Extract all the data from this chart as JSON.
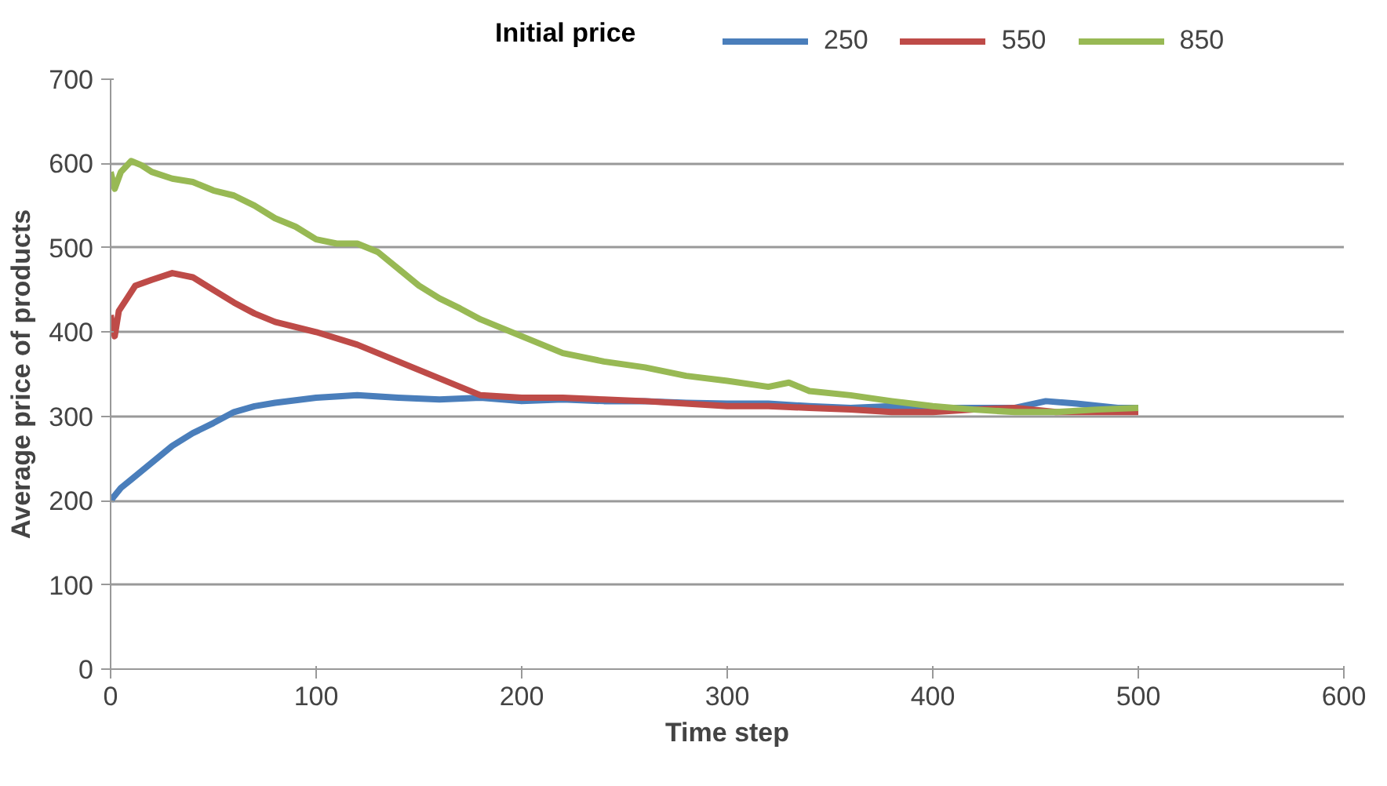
{
  "chart_data": {
    "type": "line",
    "xlabel": "Time step",
    "ylabel": "Average price of products",
    "legend_title": "Initial price",
    "xlim": [
      0,
      600
    ],
    "xticks": [
      0,
      100,
      200,
      300,
      400,
      500,
      600
    ],
    "ylim": [
      0,
      700
    ],
    "yticks": [
      0,
      100,
      200,
      300,
      400,
      500,
      600,
      700
    ],
    "grid": "y",
    "legend": "top",
    "marker": "none",
    "line_style": "solid",
    "series": [
      {
        "name": "250",
        "color": "#4a7ebb",
        "x": [
          0,
          5,
          10,
          20,
          30,
          40,
          50,
          60,
          70,
          80,
          100,
          120,
          140,
          160,
          180,
          200,
          220,
          240,
          260,
          280,
          300,
          320,
          340,
          360,
          380,
          400,
          420,
          440,
          455,
          470,
          490,
          500
        ],
        "values": [
          200,
          215,
          225,
          245,
          265,
          280,
          292,
          305,
          312,
          316,
          322,
          325,
          322,
          320,
          322,
          318,
          320,
          318,
          318,
          316,
          315,
          315,
          312,
          310,
          312,
          310,
          310,
          310,
          318,
          315,
          310,
          310
        ]
      },
      {
        "name": "550",
        "color": "#be4b48",
        "x": [
          0,
          2,
          4,
          8,
          12,
          20,
          30,
          40,
          50,
          60,
          70,
          80,
          100,
          120,
          140,
          160,
          170,
          180,
          200,
          220,
          240,
          260,
          280,
          300,
          320,
          340,
          360,
          380,
          400,
          420,
          440,
          460,
          480,
          500
        ],
        "values": [
          420,
          395,
          425,
          440,
          455,
          462,
          470,
          465,
          450,
          435,
          422,
          412,
          400,
          385,
          365,
          345,
          335,
          325,
          322,
          322,
          320,
          318,
          315,
          312,
          312,
          310,
          308,
          305,
          305,
          308,
          310,
          305,
          305,
          305
        ]
      },
      {
        "name": "850",
        "color": "#98b954",
        "x": [
          0,
          2,
          5,
          10,
          15,
          20,
          30,
          40,
          50,
          60,
          70,
          80,
          90,
          100,
          110,
          120,
          130,
          140,
          150,
          160,
          170,
          180,
          200,
          220,
          240,
          260,
          280,
          300,
          320,
          330,
          340,
          360,
          380,
          400,
          420,
          440,
          460,
          480,
          500
        ],
        "values": [
          590,
          570,
          590,
          603,
          598,
          590,
          582,
          578,
          568,
          562,
          550,
          535,
          525,
          510,
          505,
          505,
          495,
          475,
          455,
          440,
          428,
          415,
          395,
          375,
          365,
          358,
          348,
          342,
          335,
          340,
          330,
          325,
          318,
          312,
          308,
          305,
          305,
          308,
          310
        ]
      }
    ]
  }
}
